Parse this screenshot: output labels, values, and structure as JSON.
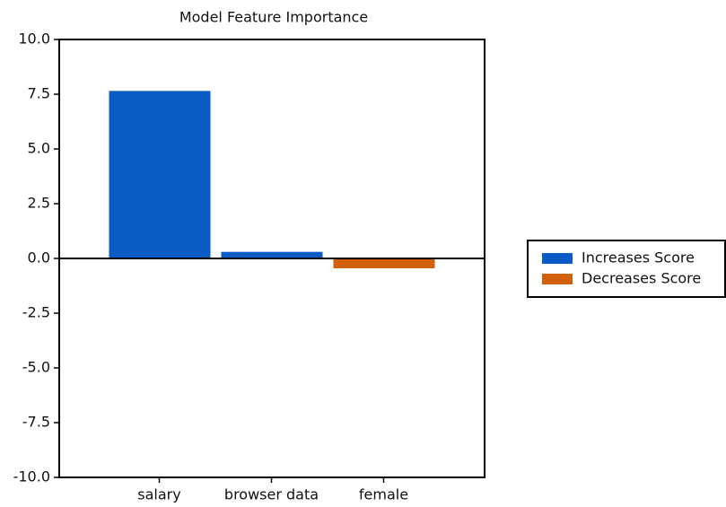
{
  "chart_data": {
    "type": "bar",
    "title": "Model Feature Importance",
    "categories": [
      "salary",
      "browser data",
      "female"
    ],
    "series": [
      {
        "name": "Increases Score",
        "color": "#0a5bc4",
        "values": [
          7.65,
          0.3,
          null
        ]
      },
      {
        "name": "Decreases Score",
        "color": "#d2610c",
        "values": [
          null,
          null,
          -0.45
        ]
      }
    ],
    "ylim": [
      -10,
      10
    ],
    "yticks": [
      {
        "value": -10,
        "label": "-10.0"
      },
      -7.5,
      {
        "value": -5,
        "label": "-5.0"
      },
      -2.5,
      {
        "value": 0,
        "label": "0.0"
      },
      2.5,
      {
        "value": 5,
        "label": "5.0"
      },
      7.5,
      {
        "value": 10,
        "label": "10.0"
      }
    ],
    "legend": "right"
  }
}
